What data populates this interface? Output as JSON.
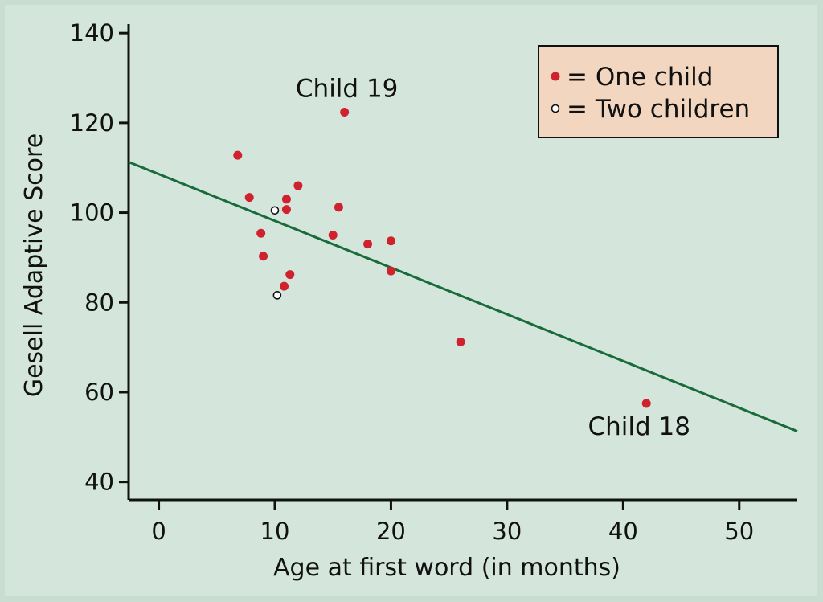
{
  "chart_data": {
    "type": "scatter",
    "title": "",
    "xlabel": "Age at first word (in months)",
    "ylabel": "Gesell Adaptive Score",
    "xlim": [
      -2.6,
      55
    ],
    "ylim": [
      36,
      142
    ],
    "x_ticks": [
      0,
      10,
      20,
      30,
      40,
      50
    ],
    "y_ticks": [
      40,
      60,
      80,
      100,
      120,
      140
    ],
    "x_tick_labels": [
      "0",
      "10",
      "20",
      "30",
      "40",
      "50"
    ],
    "y_tick_labels": [
      "40",
      "60",
      "80",
      "100",
      "120",
      "140"
    ],
    "series": [
      {
        "name": "One child",
        "marker": "filled",
        "color": "#d0212e",
        "points": [
          {
            "x": 6.8,
            "y": 112.8
          },
          {
            "x": 7.8,
            "y": 103.4
          },
          {
            "x": 8.8,
            "y": 95.4
          },
          {
            "x": 9.0,
            "y": 90.3
          },
          {
            "x": 10.8,
            "y": 83.6
          },
          {
            "x": 11.0,
            "y": 103.0
          },
          {
            "x": 11.0,
            "y": 100.7
          },
          {
            "x": 11.3,
            "y": 86.2
          },
          {
            "x": 12.0,
            "y": 106.0
          },
          {
            "x": 15.0,
            "y": 95.0
          },
          {
            "x": 15.5,
            "y": 101.2
          },
          {
            "x": 16.0,
            "y": 122.4
          },
          {
            "x": 18.0,
            "y": 93.0
          },
          {
            "x": 20.0,
            "y": 93.7
          },
          {
            "x": 20.0,
            "y": 87.0
          },
          {
            "x": 26.0,
            "y": 71.2
          },
          {
            "x": 42.0,
            "y": 57.5
          }
        ]
      },
      {
        "name": "Two children",
        "marker": "open",
        "color": "#111111",
        "points": [
          {
            "x": 10.0,
            "y": 100.5
          },
          {
            "x": 10.2,
            "y": 81.6
          }
        ]
      }
    ],
    "fit_line": {
      "x_start": -2.6,
      "y_start": 111.3,
      "x_end": 55,
      "y_end": 51.3,
      "color": "#1a6b3c"
    },
    "annotations": [
      {
        "text": "Child 19",
        "x": 16.0,
        "y": 122.4,
        "position": "above"
      },
      {
        "text": "Child 18",
        "x": 42.0,
        "y": 57.5,
        "position": "below"
      }
    ],
    "legend": {
      "position": "top-right",
      "background": "#f2d6bf",
      "items": [
        {
          "label": "= One child",
          "marker": "filled"
        },
        {
          "label": "= Two children",
          "marker": "open"
        }
      ]
    },
    "colors": {
      "background": "#d4e6dc",
      "frame": "#c9ddd0",
      "axis": "#111111"
    }
  }
}
